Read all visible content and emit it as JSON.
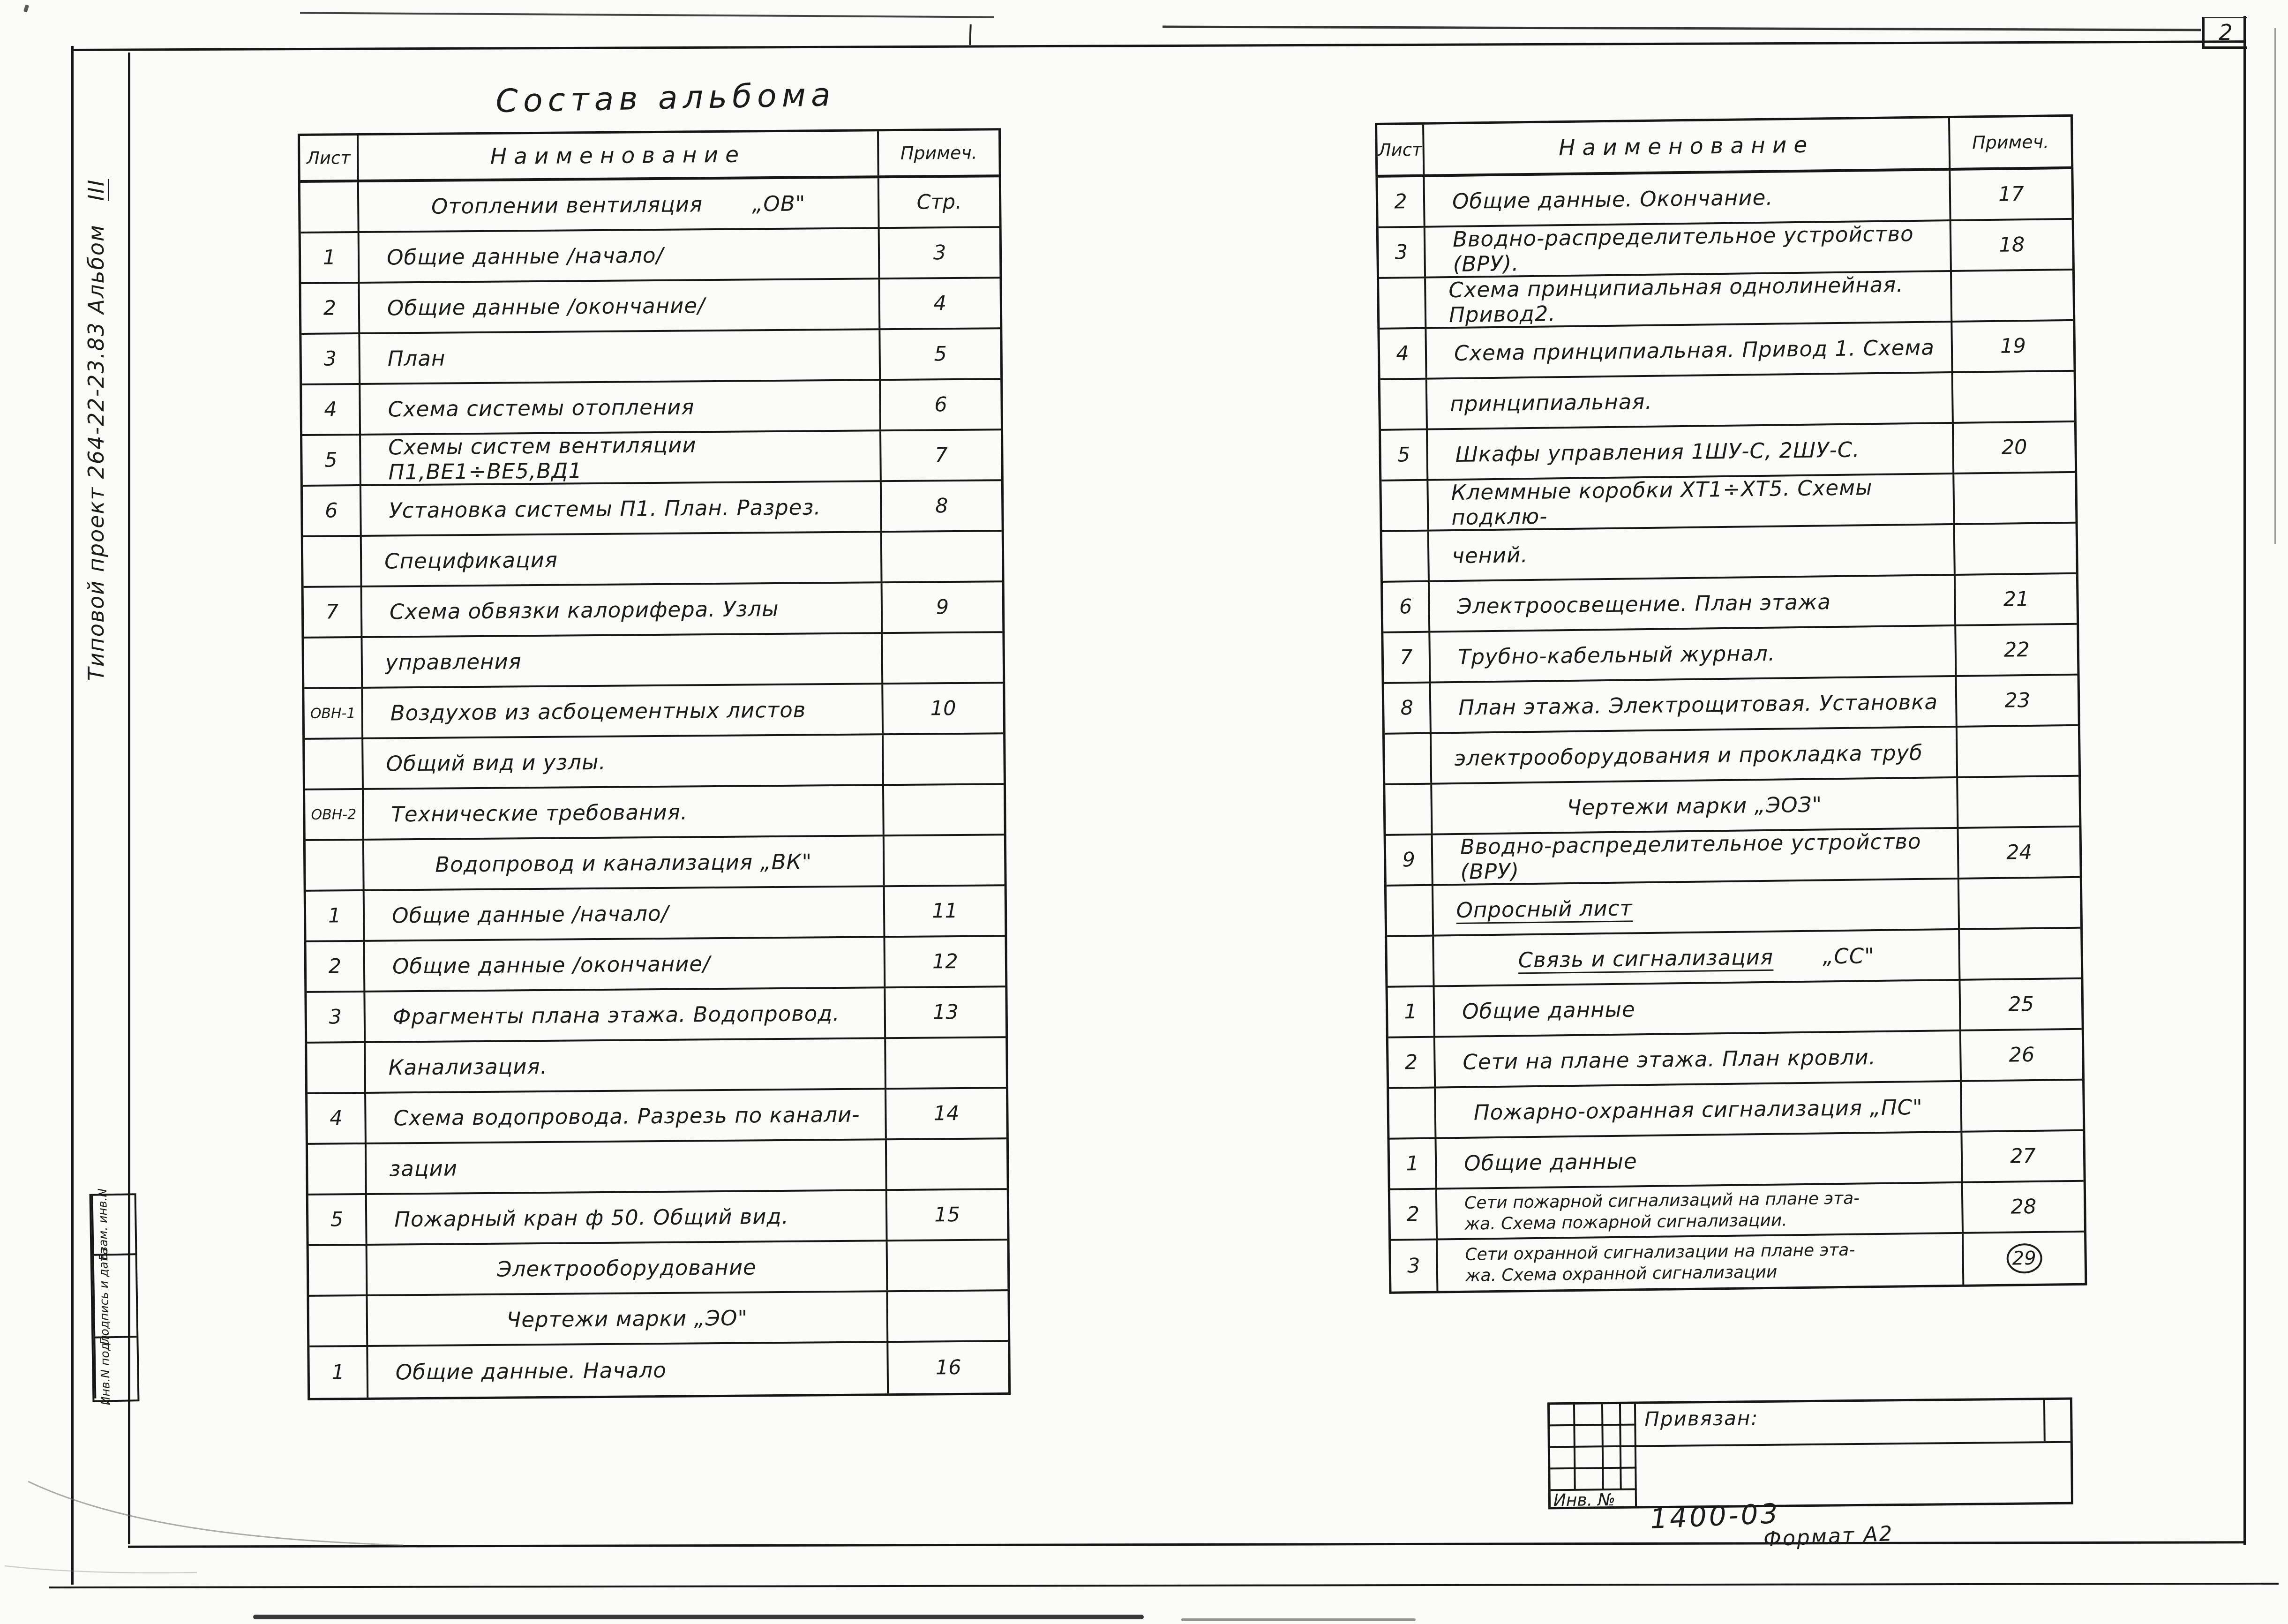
{
  "page": {
    "number": "2",
    "title": "Состав альбома",
    "side_label_prefix": "Типовой проект 264-22-23.83 Альбом",
    "side_label_album": "III",
    "doc_number": "1400-03",
    "format_label": "Формат А2",
    "binding_label": "Привязан:",
    "inventory_label": "Инв. №",
    "stamp_labels": [
      "Взам. инв.N",
      "Подпись и дата",
      "Инв.N подл."
    ],
    "ink_color": "#1b1b1b",
    "paper_color": "#fbfbf9"
  },
  "contents": {
    "left": {
      "headers": {
        "sheet": "Лист",
        "name": "Наименование",
        "note": "Примеч."
      },
      "rows": [
        {
          "type": "section",
          "name": "Отоплении вентиляция",
          "suffix": "„ОВ\"",
          "note": "Стр."
        },
        {
          "type": "item",
          "sheet": "1",
          "name": "Общие данные /начало/",
          "note": "3"
        },
        {
          "type": "item",
          "sheet": "2",
          "name": "Общие данные /окончание/",
          "note": "4"
        },
        {
          "type": "item",
          "sheet": "3",
          "name": "План",
          "note": "5"
        },
        {
          "type": "item",
          "sheet": "4",
          "name": "Схема системы отопления",
          "note": "6"
        },
        {
          "type": "item",
          "sheet": "5",
          "name": "Схемы систем вентиляции П1,ВЕ1÷ВЕ5,ВД1",
          "note": "7"
        },
        {
          "type": "item",
          "sheet": "6",
          "name": "Установка системы П1. План. Разрез.",
          "note": "8"
        },
        {
          "type": "cont",
          "name": "Спецификация"
        },
        {
          "type": "item",
          "sheet": "7",
          "name": "Схема обвязки калорифера. Узлы",
          "note": "9"
        },
        {
          "type": "cont",
          "name": "управления"
        },
        {
          "type": "item",
          "sheet": "ОВН-1",
          "name": "Воздухов из асбоцементных листов",
          "note": "10"
        },
        {
          "type": "cont",
          "name": "Общий вид и узлы."
        },
        {
          "type": "item",
          "sheet": "ОВН-2",
          "name": "Технические требования."
        },
        {
          "type": "section",
          "name": "Водопровод и канализация „ВК\""
        },
        {
          "type": "item",
          "sheet": "1",
          "name": "Общие данные /начало/",
          "note": "11"
        },
        {
          "type": "item",
          "sheet": "2",
          "name": "Общие данные /окончание/",
          "note": "12"
        },
        {
          "type": "item",
          "sheet": "3",
          "name": "Фрагменты плана этажа. Водопровод.",
          "note": "13"
        },
        {
          "type": "cont",
          "name": "Канализация."
        },
        {
          "type": "item",
          "sheet": "4",
          "name": "Схема водопровода. Разрезь по канали-",
          "note": "14"
        },
        {
          "type": "cont",
          "name": "зации"
        },
        {
          "type": "item",
          "sheet": "5",
          "name": "Пожарный кран ф 50. Общий вид.",
          "note": "15"
        },
        {
          "type": "section",
          "name": "Электрооборудование"
        },
        {
          "type": "section",
          "name": "Чертежи марки „ЭО\""
        },
        {
          "type": "item",
          "sheet": "1",
          "name": "Общие данные. Начало",
          "note": "16"
        }
      ]
    },
    "right": {
      "headers": {
        "sheet": "Лист",
        "name": "Наименование",
        "note": "Примеч."
      },
      "rows": [
        {
          "type": "item",
          "sheet": "2",
          "name": "Общие данные. Окончание.",
          "note": "17"
        },
        {
          "type": "item",
          "sheet": "3",
          "name": "Вводно-распределительное устройство (ВРУ).",
          "note": "18"
        },
        {
          "type": "cont",
          "name": "Схема принципиальная однолинейная. Привод2."
        },
        {
          "type": "item",
          "sheet": "4",
          "name": "Схема принципиальная. Привод 1. Схема",
          "note": "19"
        },
        {
          "type": "cont",
          "name": "принципиальная."
        },
        {
          "type": "item",
          "sheet": "5",
          "name": "Шкафы управления 1ШУ-С, 2ШУ-С.",
          "note": "20"
        },
        {
          "type": "cont",
          "name": "Клеммные коробки ХТ1÷ХТ5. Схемы подклю-"
        },
        {
          "type": "cont",
          "name": "чений."
        },
        {
          "type": "item",
          "sheet": "6",
          "name": "Электроосвещение. План этажа",
          "note": "21"
        },
        {
          "type": "item",
          "sheet": "7",
          "name": "Трубно-кабельный журнал.",
          "note": "22"
        },
        {
          "type": "item",
          "sheet": "8",
          "name": "План этажа. Электрощитовая. Установка",
          "note": "23"
        },
        {
          "type": "cont",
          "name": "электрооборудования и прокладка труб"
        },
        {
          "type": "section",
          "name": "Чертежи марки „ЭОЗ\""
        },
        {
          "type": "item",
          "sheet": "9",
          "name": "Вводно-распределительное устройство (ВРУ)",
          "note": "24"
        },
        {
          "type": "cont",
          "name": "Опросный лист",
          "underline": true
        },
        {
          "type": "section",
          "name": "Связь и сигнализация",
          "suffix": "„СС\"",
          "underline": true
        },
        {
          "type": "item",
          "sheet": "1",
          "name": "Общие данные",
          "note": "25"
        },
        {
          "type": "item",
          "sheet": "2",
          "name": "Сети на плане этажа. План кровли.",
          "note": "26"
        },
        {
          "type": "section",
          "name": "Пожарно-охранная сигнализация „ПС\""
        },
        {
          "type": "item",
          "sheet": "1",
          "name": "Общие данные",
          "note": "27"
        },
        {
          "type": "item",
          "sheet": "2",
          "name_lines": [
            "Сети пожарной сигнализаций на плане эта-",
            "жа. Схема пожарной сигнализации."
          ],
          "note": "28"
        },
        {
          "type": "item",
          "sheet": "3",
          "name_lines": [
            "Сети охранной сигнализации на плане эта-",
            "жа. Схема охранной сигнализации"
          ],
          "note": "29",
          "note_circled": true
        }
      ]
    }
  }
}
